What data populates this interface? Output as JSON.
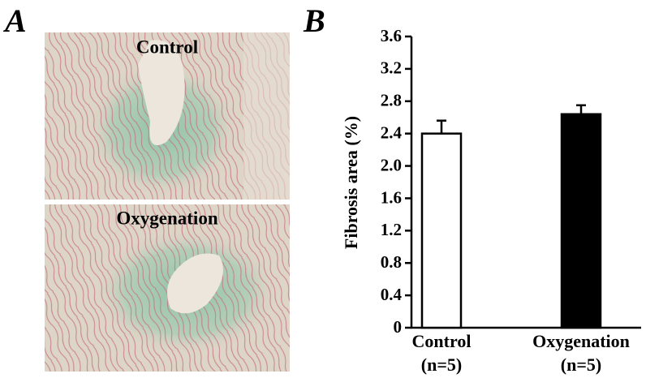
{
  "panel_a": {
    "label": "A",
    "images": [
      {
        "caption": "Control"
      },
      {
        "caption": "Oxygenation"
      }
    ]
  },
  "chart_data": {
    "type": "bar",
    "panel_label": "B",
    "ylabel": "Fibrosis area (%)",
    "categories": [
      "Control",
      "Oxygenation"
    ],
    "category_notes": [
      "(n=5)",
      "(n=5)"
    ],
    "values": [
      2.4,
      2.64
    ],
    "errors": [
      0.16,
      0.11
    ],
    "colors": [
      "#ffffff",
      "#000000"
    ],
    "edgecolor": "#000000",
    "ylim": [
      0,
      3.6
    ],
    "yticks": [
      0,
      0.4,
      0.8,
      1.2,
      1.6,
      {
        "value": 2,
        "label": "2.0"
      },
      2.4,
      2.8,
      3.2,
      3.6
    ]
  }
}
